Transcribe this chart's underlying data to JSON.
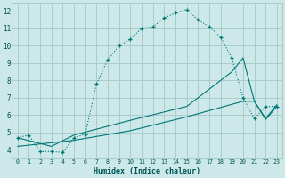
{
  "title": "",
  "xlabel": "Humidex (Indice chaleur)",
  "bg_color": "#cce8e8",
  "grid_color": "#aacccc",
  "line_color": "#007777",
  "xlim": [
    -0.5,
    23.5
  ],
  "ylim": [
    3.5,
    12.5
  ],
  "xticks": [
    0,
    1,
    2,
    3,
    4,
    5,
    6,
    7,
    8,
    9,
    10,
    11,
    12,
    13,
    14,
    15,
    16,
    17,
    18,
    19,
    20,
    21,
    22,
    23
  ],
  "yticks": [
    4,
    5,
    6,
    7,
    8,
    9,
    10,
    11,
    12
  ],
  "curve1_x": [
    0,
    1,
    2,
    3,
    4,
    5,
    6,
    7,
    8,
    9,
    10,
    11,
    12,
    13,
    14,
    15,
    16,
    17,
    18,
    19,
    20,
    21,
    22,
    23
  ],
  "curve1_y": [
    4.7,
    4.85,
    3.9,
    3.9,
    3.85,
    4.7,
    4.9,
    7.8,
    9.2,
    10.0,
    10.4,
    11.0,
    11.1,
    11.6,
    11.9,
    12.1,
    11.5,
    11.1,
    10.5,
    9.3,
    7.0,
    5.8,
    6.5,
    6.5
  ],
  "curve2_x": [
    0,
    3,
    5,
    10,
    15,
    19,
    20,
    21,
    22,
    23
  ],
  "curve2_y": [
    4.7,
    4.2,
    4.85,
    5.7,
    6.5,
    8.5,
    9.3,
    6.8,
    5.8,
    6.6
  ],
  "curve3_x": [
    0,
    5,
    10,
    15,
    20,
    21,
    22,
    23
  ],
  "curve3_y": [
    4.2,
    4.55,
    5.1,
    5.9,
    6.8,
    6.8,
    5.75,
    6.5
  ]
}
